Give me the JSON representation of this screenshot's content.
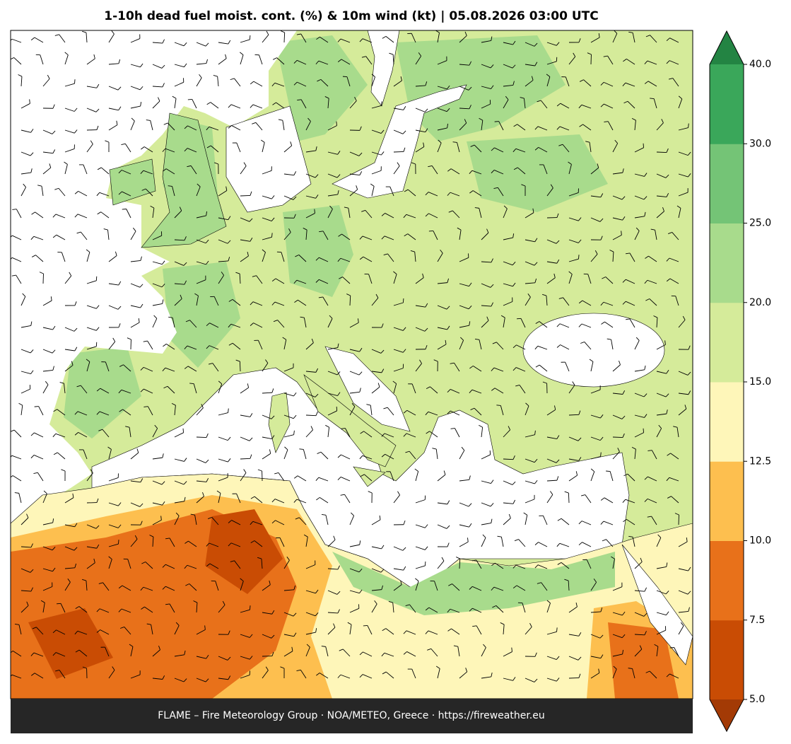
{
  "title": "1-10h dead fuel moist. cont. (%) & 10m wind (kt)  |  05.08.2026 03:00 UTC",
  "footer": "FLAME – Fire Meteorology Group · NOA/METEO, Greece · https://fireweather.eu",
  "colorbar": {
    "ticks": [
      {
        "value": 5,
        "label": "5.0"
      },
      {
        "value": 7.5,
        "label": "7.5"
      },
      {
        "value": 10,
        "label": "10.0"
      },
      {
        "value": 12.5,
        "label": "12.5"
      },
      {
        "value": 15,
        "label": "15.0"
      },
      {
        "value": 20,
        "label": "20.0"
      },
      {
        "value": 25,
        "label": "25.0"
      },
      {
        "value": 30,
        "label": "30.0"
      },
      {
        "value": 40,
        "label": "40.0"
      }
    ],
    "colors": [
      "#c94c04",
      "#e8711a",
      "#fdbf4f",
      "#fef6b9",
      "#d5eb9a",
      "#a8db8c",
      "#74c476",
      "#3aa75a"
    ],
    "under_color": "#a33a05",
    "over_color": "#238443"
  }
}
